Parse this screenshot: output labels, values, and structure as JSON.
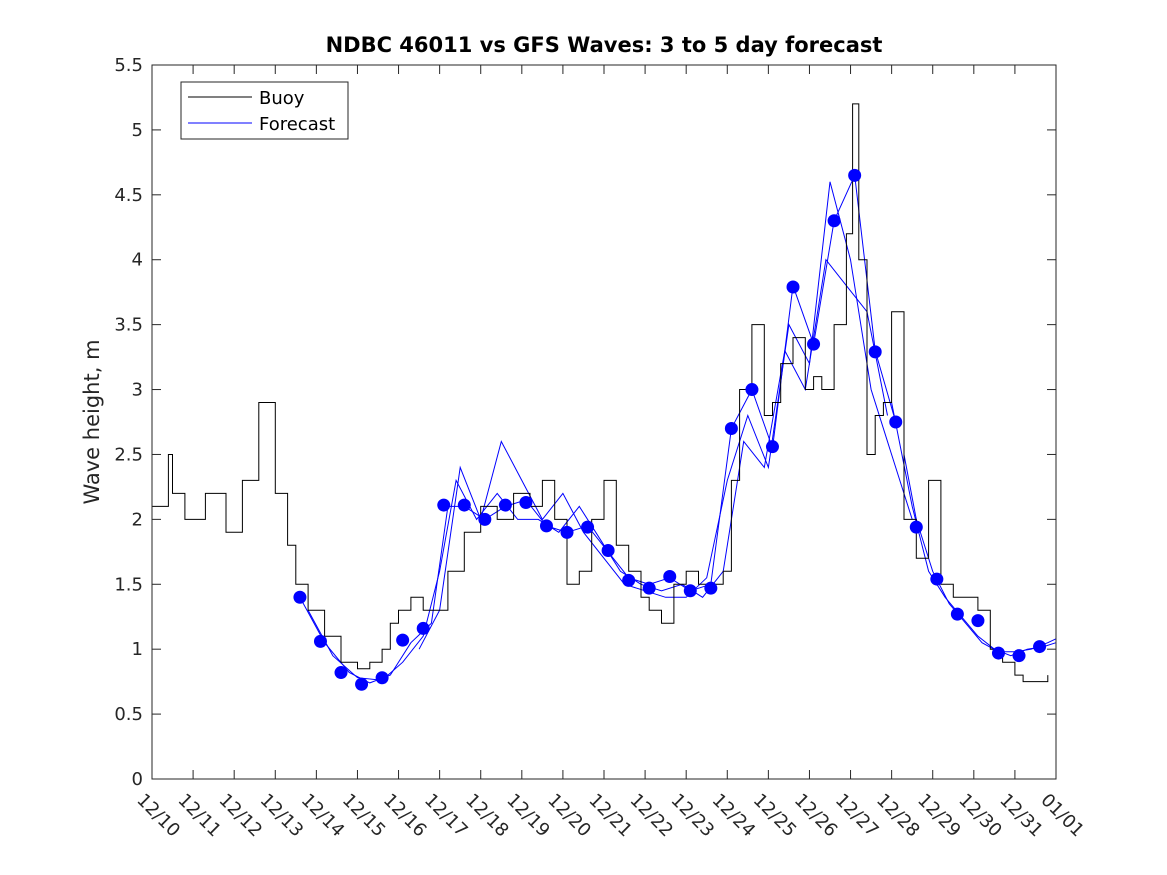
{
  "chart_data": {
    "type": "line",
    "title": "NDBC 46011 vs GFS Waves: 3 to 5 day forecast",
    "xlabel": "",
    "ylabel": "Wave height, m",
    "xlim": [
      0,
      22
    ],
    "ylim": [
      0,
      5.5
    ],
    "y_ticks": [
      "0",
      "0.5",
      "1",
      "1.5",
      "2",
      "2.5",
      "3",
      "3.5",
      "4",
      "4.5",
      "5",
      "5.5"
    ],
    "x_ticks": [
      "12/10",
      "12/11",
      "12/12",
      "12/13",
      "12/14",
      "12/15",
      "12/16",
      "12/17",
      "12/18",
      "12/19",
      "12/20",
      "12/21",
      "12/22",
      "12/23",
      "12/24",
      "12/25",
      "12/26",
      "12/27",
      "12/28",
      "12/29",
      "12/30",
      "12/31",
      "01/01"
    ],
    "legend": {
      "position": "top-left",
      "entries": [
        "Buoy",
        "Forecast"
      ]
    },
    "colors": {
      "buoy": "#000000",
      "forecast": "#0000ff",
      "marker": "#0000ff",
      "axis": "#262626"
    },
    "buoy": {
      "name": "Buoy",
      "x": [
        0,
        0.4,
        0.5,
        0.8,
        1.3,
        1.8,
        2.2,
        2.6,
        3.0,
        3.3,
        3.5,
        3.8,
        4.2,
        4.6,
        4.9,
        5.0,
        5.3,
        5.6,
        5.8,
        6.0,
        6.3,
        6.6,
        6.9,
        7.2,
        7.6,
        8.0,
        8.4,
        8.8,
        9.2,
        9.5,
        9.8,
        10.1,
        10.4,
        10.7,
        11.0,
        11.3,
        11.6,
        11.9,
        12.1,
        12.4,
        12.7,
        13.0,
        13.3,
        13.6,
        13.9,
        14.1,
        14.3,
        14.6,
        14.9,
        15.1,
        15.3,
        15.6,
        15.9,
        16.1,
        16.3,
        16.6,
        16.9,
        17.05,
        17.2,
        17.4,
        17.6,
        17.8,
        18.0,
        18.3,
        18.6,
        18.9,
        19.2,
        19.5,
        19.8,
        20.1,
        20.4,
        20.7,
        21.0,
        21.2,
        21.5,
        21.8
      ],
      "y": [
        2.1,
        2.5,
        2.2,
        2.0,
        2.2,
        1.9,
        2.3,
        2.9,
        2.2,
        1.8,
        1.5,
        1.3,
        1.1,
        0.9,
        0.9,
        0.85,
        0.9,
        1.0,
        1.2,
        1.3,
        1.4,
        1.3,
        1.3,
        1.6,
        1.9,
        2.1,
        2.0,
        2.2,
        2.1,
        2.3,
        2.0,
        1.5,
        1.6,
        2.0,
        2.3,
        1.8,
        1.6,
        1.4,
        1.3,
        1.2,
        1.5,
        1.6,
        1.5,
        1.5,
        1.6,
        2.3,
        3.0,
        3.5,
        2.8,
        2.9,
        3.2,
        3.4,
        3.0,
        3.1,
        3.0,
        3.5,
        4.2,
        5.2,
        4.0,
        2.5,
        2.8,
        2.9,
        3.6,
        2.0,
        1.7,
        2.3,
        1.5,
        1.4,
        1.4,
        1.3,
        1.0,
        0.9,
        0.8,
        0.75,
        0.75,
        0.8
      ]
    },
    "forecast_runs": [
      {
        "name": "Forecast",
        "x": [
          3.6,
          4.2,
          4.8,
          5.3,
          5.8,
          6.3,
          6.8,
          7.2,
          7.6,
          8.1,
          8.6,
          9.1,
          9.6,
          10.1,
          10.6,
          11.1,
          11.6,
          12.1,
          12.6,
          13.1,
          13.6,
          14.1,
          14.6,
          15.1,
          15.6,
          16.1,
          16.6,
          17.1,
          17.6,
          18.1
        ],
        "y": [
          1.4,
          1.05,
          0.82,
          0.74,
          0.8,
          1.05,
          1.2,
          2.1,
          2.1,
          2.0,
          2.1,
          2.15,
          1.95,
          1.9,
          1.95,
          1.75,
          1.55,
          1.5,
          1.55,
          1.45,
          1.5,
          2.7,
          3.0,
          2.55,
          3.8,
          3.35,
          4.3,
          4.65,
          3.3,
          2.75
        ]
      },
      {
        "name": "Forecast",
        "x": [
          3.8,
          4.4,
          5.0,
          5.6,
          6.1,
          6.6,
          7.0,
          7.4,
          7.9,
          8.4,
          8.9,
          9.4,
          9.9,
          10.4,
          10.9,
          11.4,
          11.9,
          12.4,
          12.9,
          13.4,
          13.9,
          14.4,
          14.9,
          15.4,
          15.9,
          16.4,
          16.9,
          17.4,
          17.9
        ],
        "y": [
          1.3,
          0.95,
          0.78,
          0.76,
          0.9,
          1.1,
          1.6,
          2.3,
          2.0,
          2.2,
          2.0,
          2.0,
          1.9,
          2.1,
          1.85,
          1.6,
          1.5,
          1.45,
          1.5,
          1.4,
          1.6,
          2.6,
          2.4,
          3.3,
          3.0,
          4.0,
          3.8,
          3.6,
          2.8
        ]
      },
      {
        "name": "Forecast",
        "x": [
          6.5,
          7.0,
          7.5,
          8.0,
          8.5,
          9.0,
          9.5,
          10.0,
          10.5,
          11.0,
          11.5,
          12.0,
          12.5,
          13.0,
          13.5,
          14.0,
          14.5,
          15.0,
          15.5,
          16.0,
          16.5,
          17.0,
          17.5,
          18.0,
          18.5
        ],
        "y": [
          1.0,
          1.3,
          2.4,
          2.0,
          2.6,
          2.3,
          2.0,
          2.2,
          1.9,
          1.7,
          1.5,
          1.45,
          1.4,
          1.4,
          1.55,
          2.3,
          2.8,
          2.4,
          3.5,
          3.2,
          4.6,
          4.0,
          3.0,
          2.5,
          2.0
        ]
      },
      {
        "name": "Forecast",
        "x": [
          18.3,
          18.6,
          19.0,
          19.4,
          19.8,
          20.2,
          20.6,
          21.0,
          21.4,
          21.8,
          22.0
        ],
        "y": [
          2.5,
          2.0,
          1.6,
          1.35,
          1.2,
          1.05,
          0.98,
          0.98,
          1.0,
          1.05,
          1.08
        ]
      },
      {
        "name": "Forecast",
        "x": [
          18.0,
          18.5,
          18.9,
          19.3,
          19.7,
          20.1,
          20.5,
          20.9,
          21.3,
          21.7,
          22.0
        ],
        "y": [
          2.9,
          2.1,
          1.6,
          1.4,
          1.25,
          1.1,
          1.0,
          0.95,
          1.0,
          1.02,
          1.05
        ]
      }
    ],
    "forecast_markers": {
      "x": [
        3.6,
        4.1,
        4.6,
        5.1,
        5.6,
        6.1,
        6.6,
        7.1,
        7.6,
        8.1,
        8.6,
        9.1,
        9.6,
        10.1,
        10.6,
        11.1,
        11.6,
        12.1,
        12.6,
        13.1,
        13.6,
        14.1,
        14.6,
        15.1,
        15.6,
        16.1,
        16.6,
        17.1,
        17.6,
        18.1,
        18.6,
        19.1,
        19.6,
        20.1,
        20.6,
        21.1,
        21.6
      ],
      "y": [
        1.4,
        1.06,
        0.82,
        0.73,
        0.78,
        1.07,
        1.16,
        2.11,
        2.11,
        2.0,
        2.11,
        2.13,
        1.95,
        1.9,
        1.94,
        1.76,
        1.53,
        1.47,
        1.56,
        1.45,
        1.47,
        2.7,
        3.0,
        2.56,
        3.79,
        3.35,
        4.3,
        4.65,
        3.29,
        2.75,
        1.94,
        1.54,
        1.27,
        1.22,
        0.97,
        0.95,
        1.02
      ]
    }
  }
}
